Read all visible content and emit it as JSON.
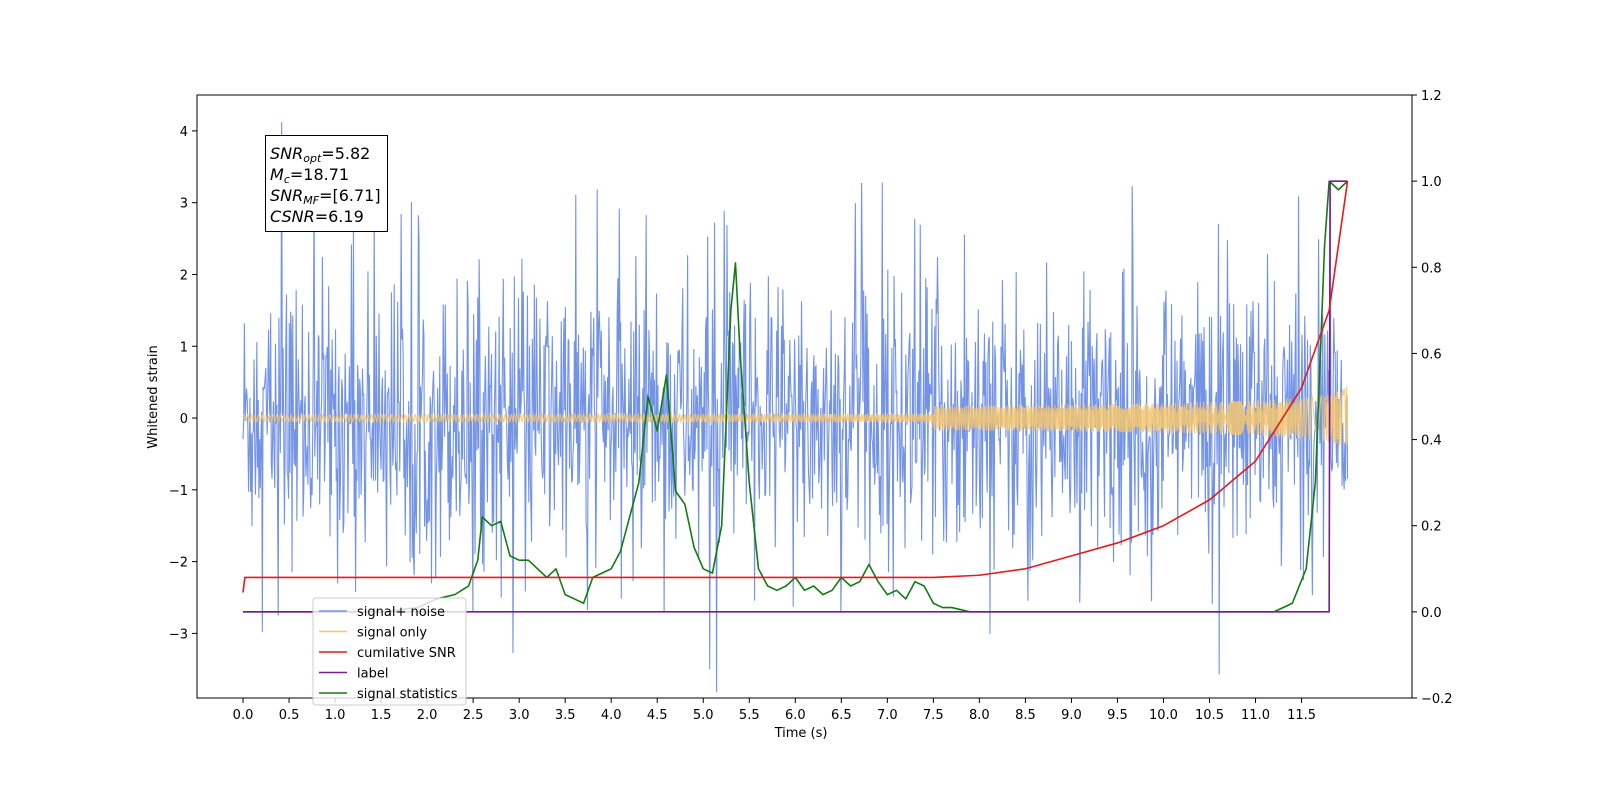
{
  "chart_data": {
    "type": "line",
    "xlabel": "Time (s)",
    "ylabel": "Whitened strain",
    "xlim": [
      -0.5,
      12.7
    ],
    "ylim": [
      -3.9,
      4.5
    ],
    "y2lim": [
      -0.2,
      1.2
    ],
    "x_ticks": [
      "0.0",
      "0.5",
      "1.0",
      "1.5",
      "2.0",
      "2.5",
      "3.0",
      "3.5",
      "4.0",
      "4.5",
      "5.0",
      "5.5",
      "6.0",
      "6.5",
      "7.0",
      "7.5",
      "8.0",
      "8.5",
      "9.0",
      "9.5",
      "10.0",
      "10.5",
      "11.0",
      "11.5"
    ],
    "y_ticks": [
      "4",
      "3",
      "2",
      "1",
      "0",
      "−1",
      "−2",
      "−3"
    ],
    "y2_ticks": [
      "1.2",
      "1.0",
      "0.8",
      "0.6",
      "0.4",
      "0.2",
      "0.0",
      "−0.2"
    ],
    "legend_placement": "lower-left",
    "series": [
      {
        "name": "signal+ noise",
        "axis": "left",
        "color": "#7393e6",
        "description": "whitened noise, roughly amplitude ±2 with spikes up to ~4.1",
        "x_range": [
          0,
          12.0
        ],
        "amplitude": 1.4,
        "spike_max": 4.12,
        "spike_min": -3.5
      },
      {
        "name": "signal only",
        "axis": "left",
        "color": "#f5c66e",
        "description": "chirp starting flat near 0, growing in amplitude toward end",
        "x_range": [
          0,
          12.0
        ],
        "final_amplitude": 0.45
      },
      {
        "name": "cumilative SNR",
        "axis": "right",
        "color": "#e41a1c",
        "x": [
          0.0,
          0.02,
          1.0,
          2.0,
          3.0,
          4.0,
          5.0,
          6.0,
          7.0,
          7.5,
          8.0,
          8.5,
          9.0,
          9.5,
          10.0,
          10.5,
          11.0,
          11.5,
          11.8,
          12.0
        ],
        "values": [
          0.045,
          0.08,
          0.08,
          0.08,
          0.08,
          0.08,
          0.08,
          0.08,
          0.08,
          0.08,
          0.085,
          0.1,
          0.13,
          0.16,
          0.2,
          0.26,
          0.35,
          0.52,
          0.7,
          1.0
        ]
      },
      {
        "name": "label",
        "axis": "right",
        "color": "#7b1a8a",
        "x": [
          0.0,
          11.8,
          11.81,
          11.9,
          12.0
        ],
        "values": [
          0.0,
          0.0,
          1.0,
          1.0,
          1.0
        ]
      },
      {
        "name": "signal statistics",
        "axis": "right",
        "color": "#137b13",
        "x": [
          0.0,
          1.5,
          1.9,
          2.1,
          2.3,
          2.45,
          2.55,
          2.6,
          2.7,
          2.8,
          2.9,
          3.0,
          3.1,
          3.2,
          3.3,
          3.4,
          3.5,
          3.6,
          3.7,
          3.8,
          3.9,
          4.0,
          4.1,
          4.2,
          4.3,
          4.4,
          4.5,
          4.6,
          4.7,
          4.8,
          4.9,
          5.0,
          5.1,
          5.2,
          5.3,
          5.35,
          5.4,
          5.5,
          5.6,
          5.7,
          5.8,
          5.9,
          6.0,
          6.1,
          6.2,
          6.3,
          6.4,
          6.5,
          6.6,
          6.7,
          6.8,
          6.9,
          7.0,
          7.1,
          7.2,
          7.3,
          7.4,
          7.5,
          7.6,
          7.7,
          7.8,
          7.9,
          8.0,
          8.4,
          11.2,
          11.4,
          11.55,
          11.65,
          11.75,
          11.8,
          11.9,
          12.0
        ],
        "values": [
          0.0,
          0.0,
          0.01,
          0.03,
          0.04,
          0.06,
          0.12,
          0.22,
          0.2,
          0.21,
          0.13,
          0.12,
          0.12,
          0.1,
          0.08,
          0.1,
          0.04,
          0.03,
          0.02,
          0.08,
          0.09,
          0.1,
          0.14,
          0.22,
          0.3,
          0.5,
          0.42,
          0.55,
          0.28,
          0.25,
          0.15,
          0.1,
          0.09,
          0.2,
          0.7,
          0.81,
          0.6,
          0.3,
          0.1,
          0.06,
          0.05,
          0.06,
          0.08,
          0.05,
          0.06,
          0.04,
          0.05,
          0.08,
          0.06,
          0.07,
          0.11,
          0.07,
          0.04,
          0.05,
          0.03,
          0.07,
          0.06,
          0.02,
          0.01,
          0.01,
          0.005,
          0.0,
          0.0,
          0.0,
          0.0,
          0.02,
          0.1,
          0.3,
          0.85,
          1.0,
          0.98,
          1.0
        ]
      }
    ],
    "annotation": {
      "lines": [
        {
          "sym": "SNR",
          "sub": "opt",
          "value": "=5.82"
        },
        {
          "sym": "M",
          "sub": "c",
          "value": "=18.71"
        },
        {
          "sym": "SNR",
          "sub": "MF",
          "value": "=[6.71]"
        },
        {
          "sym": "CSNR",
          "sub": "",
          "value": "=6.19"
        }
      ]
    }
  }
}
